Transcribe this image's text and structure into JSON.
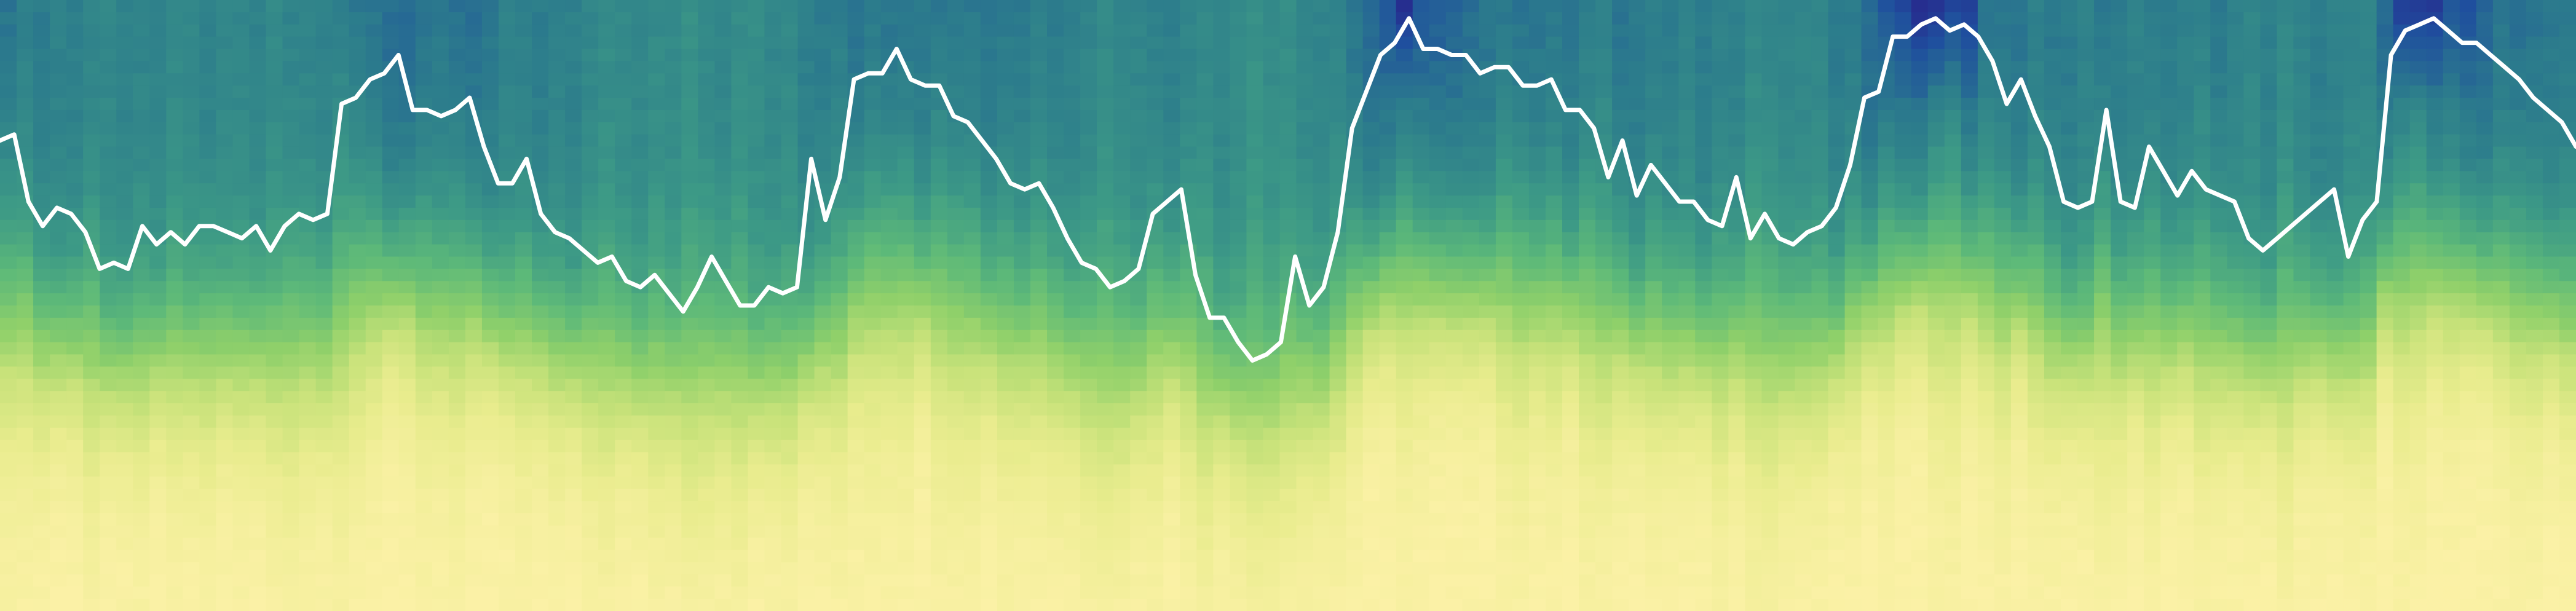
{
  "chart_data": {
    "type": "heatmap",
    "title": "",
    "xlabel": "",
    "ylabel": "",
    "grid": false,
    "legend": "none",
    "colors": {
      "colormap": [
        "#2a1b87",
        "#1f4f9e",
        "#2c7c8c",
        "#3d9a86",
        "#5db979",
        "#8fd06a",
        "#c8e27a",
        "#e9ec8e",
        "#fbf1a6"
      ],
      "line": "#ffffff"
    },
    "n_columns": 155,
    "line_y": [
      0.23,
      0.22,
      0.33,
      0.37,
      0.34,
      0.35,
      0.38,
      0.44,
      0.43,
      0.44,
      0.37,
      0.4,
      0.38,
      0.4,
      0.37,
      0.37,
      0.38,
      0.39,
      0.37,
      0.41,
      0.37,
      0.35,
      0.36,
      0.35,
      0.17,
      0.16,
      0.13,
      0.12,
      0.09,
      0.18,
      0.18,
      0.19,
      0.18,
      0.16,
      0.24,
      0.3,
      0.3,
      0.26,
      0.35,
      0.38,
      0.39,
      0.41,
      0.43,
      0.42,
      0.46,
      0.47,
      0.45,
      0.48,
      0.51,
      0.47,
      0.42,
      0.46,
      0.5,
      0.5,
      0.47,
      0.48,
      0.47,
      0.26,
      0.36,
      0.29,
      0.13,
      0.12,
      0.12,
      0.08,
      0.13,
      0.14,
      0.14,
      0.19,
      0.2,
      0.23,
      0.26,
      0.3,
      0.31,
      0.3,
      0.34,
      0.39,
      0.43,
      0.44,
      0.47,
      0.46,
      0.44,
      0.35,
      0.33,
      0.31,
      0.45,
      0.52,
      0.52,
      0.56,
      0.59,
      0.58,
      0.56,
      0.42,
      0.5,
      0.47,
      0.38,
      0.21,
      0.15,
      0.09,
      0.07,
      0.03,
      0.08,
      0.08,
      0.09,
      0.09,
      0.12,
      0.11,
      0.11,
      0.14,
      0.14,
      0.13,
      0.18,
      0.18,
      0.21,
      0.29,
      0.23,
      0.32,
      0.27,
      0.3,
      0.33,
      0.33,
      0.36,
      0.37,
      0.29,
      0.39,
      0.35,
      0.39,
      0.4,
      0.38,
      0.37,
      0.34,
      0.27,
      0.16,
      0.15,
      0.06,
      0.06,
      0.04,
      0.03,
      0.05,
      0.04,
      0.06,
      0.1,
      0.17,
      0.13,
      0.19,
      0.24,
      0.33,
      0.34,
      0.33,
      0.18,
      0.33,
      0.34,
      0.24,
      0.28,
      0.32,
      0.28,
      0.31,
      0.32,
      0.33,
      0.39,
      0.41,
      0.39,
      0.37,
      0.35,
      0.33,
      0.31,
      0.42,
      0.36,
      0.33,
      0.09,
      0.05,
      0.04,
      0.03,
      0.05,
      0.07,
      0.07,
      0.09,
      0.11,
      0.13,
      0.16,
      0.18,
      0.2,
      0.24
    ]
  }
}
